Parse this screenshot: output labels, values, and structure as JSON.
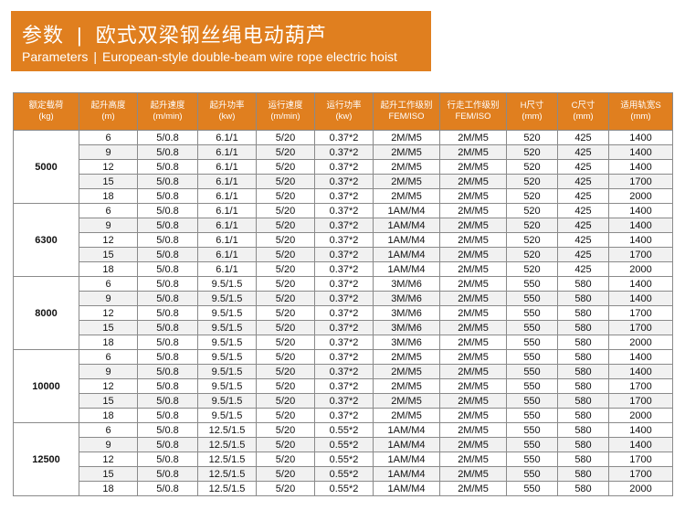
{
  "header": {
    "title_cn": "参数",
    "subtitle_cn": "欧式双梁钢丝绳电动葫芦",
    "title_en": "Parameters",
    "subtitle_en": "European-style double-beam wire rope electric hoist",
    "separator": "|",
    "background_color": "#e07f1f"
  },
  "table": {
    "header_color": "#e07f1f",
    "columns": [
      [
        "额定载荷",
        "(kg)"
      ],
      [
        "起升高度",
        "(m)"
      ],
      [
        "起升速度",
        "(m/min)"
      ],
      [
        "起升功率",
        "(kw)"
      ],
      [
        "运行速度",
        "(m/min)"
      ],
      [
        "运行功率",
        "(kw)"
      ],
      [
        "起升工作级别",
        "FEM/ISO"
      ],
      [
        "行走工作级别",
        "FEM/ISO"
      ],
      [
        "H尺寸",
        "(mm)"
      ],
      [
        "C尺寸",
        "(mm)"
      ],
      [
        "适用轨宽S",
        "(mm)"
      ]
    ],
    "groups": [
      {
        "load": "5000",
        "rows": [
          [
            "6",
            "5/0.8",
            "6.1/1",
            "5/20",
            "0.37*2",
            "2M/M5",
            "2M/M5",
            "520",
            "425",
            "1400"
          ],
          [
            "9",
            "5/0.8",
            "6.1/1",
            "5/20",
            "0.37*2",
            "2M/M5",
            "2M/M5",
            "520",
            "425",
            "1400"
          ],
          [
            "12",
            "5/0.8",
            "6.1/1",
            "5/20",
            "0.37*2",
            "2M/M5",
            "2M/M5",
            "520",
            "425",
            "1400"
          ],
          [
            "15",
            "5/0.8",
            "6.1/1",
            "5/20",
            "0.37*2",
            "2M/M5",
            "2M/M5",
            "520",
            "425",
            "1700"
          ],
          [
            "18",
            "5/0.8",
            "6.1/1",
            "5/20",
            "0.37*2",
            "2M/M5",
            "2M/M5",
            "520",
            "425",
            "2000"
          ]
        ]
      },
      {
        "load": "6300",
        "rows": [
          [
            "6",
            "5/0.8",
            "6.1/1",
            "5/20",
            "0.37*2",
            "1AM/M4",
            "2M/M5",
            "520",
            "425",
            "1400"
          ],
          [
            "9",
            "5/0.8",
            "6.1/1",
            "5/20",
            "0.37*2",
            "1AM/M4",
            "2M/M5",
            "520",
            "425",
            "1400"
          ],
          [
            "12",
            "5/0.8",
            "6.1/1",
            "5/20",
            "0.37*2",
            "1AM/M4",
            "2M/M5",
            "520",
            "425",
            "1400"
          ],
          [
            "15",
            "5/0.8",
            "6.1/1",
            "5/20",
            "0.37*2",
            "1AM/M4",
            "2M/M5",
            "520",
            "425",
            "1700"
          ],
          [
            "18",
            "5/0.8",
            "6.1/1",
            "5/20",
            "0.37*2",
            "1AM/M4",
            "2M/M5",
            "520",
            "425",
            "2000"
          ]
        ]
      },
      {
        "load": "8000",
        "rows": [
          [
            "6",
            "5/0.8",
            "9.5/1.5",
            "5/20",
            "0.37*2",
            "3M/M6",
            "2M/M5",
            "550",
            "580",
            "1400"
          ],
          [
            "9",
            "5/0.8",
            "9.5/1.5",
            "5/20",
            "0.37*2",
            "3M/M6",
            "2M/M5",
            "550",
            "580",
            "1400"
          ],
          [
            "12",
            "5/0.8",
            "9.5/1.5",
            "5/20",
            "0.37*2",
            "3M/M6",
            "2M/M5",
            "550",
            "580",
            "1700"
          ],
          [
            "15",
            "5/0.8",
            "9.5/1.5",
            "5/20",
            "0.37*2",
            "3M/M6",
            "2M/M5",
            "550",
            "580",
            "1700"
          ],
          [
            "18",
            "5/0.8",
            "9.5/1.5",
            "5/20",
            "0.37*2",
            "3M/M6",
            "2M/M5",
            "550",
            "580",
            "2000"
          ]
        ]
      },
      {
        "load": "10000",
        "rows": [
          [
            "6",
            "5/0.8",
            "9.5/1.5",
            "5/20",
            "0.37*2",
            "2M/M5",
            "2M/M5",
            "550",
            "580",
            "1400"
          ],
          [
            "9",
            "5/0.8",
            "9.5/1.5",
            "5/20",
            "0.37*2",
            "2M/M5",
            "2M/M5",
            "550",
            "580",
            "1400"
          ],
          [
            "12",
            "5/0.8",
            "9.5/1.5",
            "5/20",
            "0.37*2",
            "2M/M5",
            "2M/M5",
            "550",
            "580",
            "1700"
          ],
          [
            "15",
            "5/0.8",
            "9.5/1.5",
            "5/20",
            "0.37*2",
            "2M/M5",
            "2M/M5",
            "550",
            "580",
            "1700"
          ],
          [
            "18",
            "5/0.8",
            "9.5/1.5",
            "5/20",
            "0.37*2",
            "2M/M5",
            "2M/M5",
            "550",
            "580",
            "2000"
          ]
        ]
      },
      {
        "load": "12500",
        "rows": [
          [
            "6",
            "5/0.8",
            "12.5/1.5",
            "5/20",
            "0.55*2",
            "1AM/M4",
            "2M/M5",
            "550",
            "580",
            "1400"
          ],
          [
            "9",
            "5/0.8",
            "12.5/1.5",
            "5/20",
            "0.55*2",
            "1AM/M4",
            "2M/M5",
            "550",
            "580",
            "1400"
          ],
          [
            "12",
            "5/0.8",
            "12.5/1.5",
            "5/20",
            "0.55*2",
            "1AM/M4",
            "2M/M5",
            "550",
            "580",
            "1700"
          ],
          [
            "15",
            "5/0.8",
            "12.5/1.5",
            "5/20",
            "0.55*2",
            "1AM/M4",
            "2M/M5",
            "550",
            "580",
            "1700"
          ],
          [
            "18",
            "5/0.8",
            "12.5/1.5",
            "5/20",
            "0.55*2",
            "1AM/M4",
            "2M/M5",
            "550",
            "580",
            "2000"
          ]
        ]
      }
    ]
  }
}
